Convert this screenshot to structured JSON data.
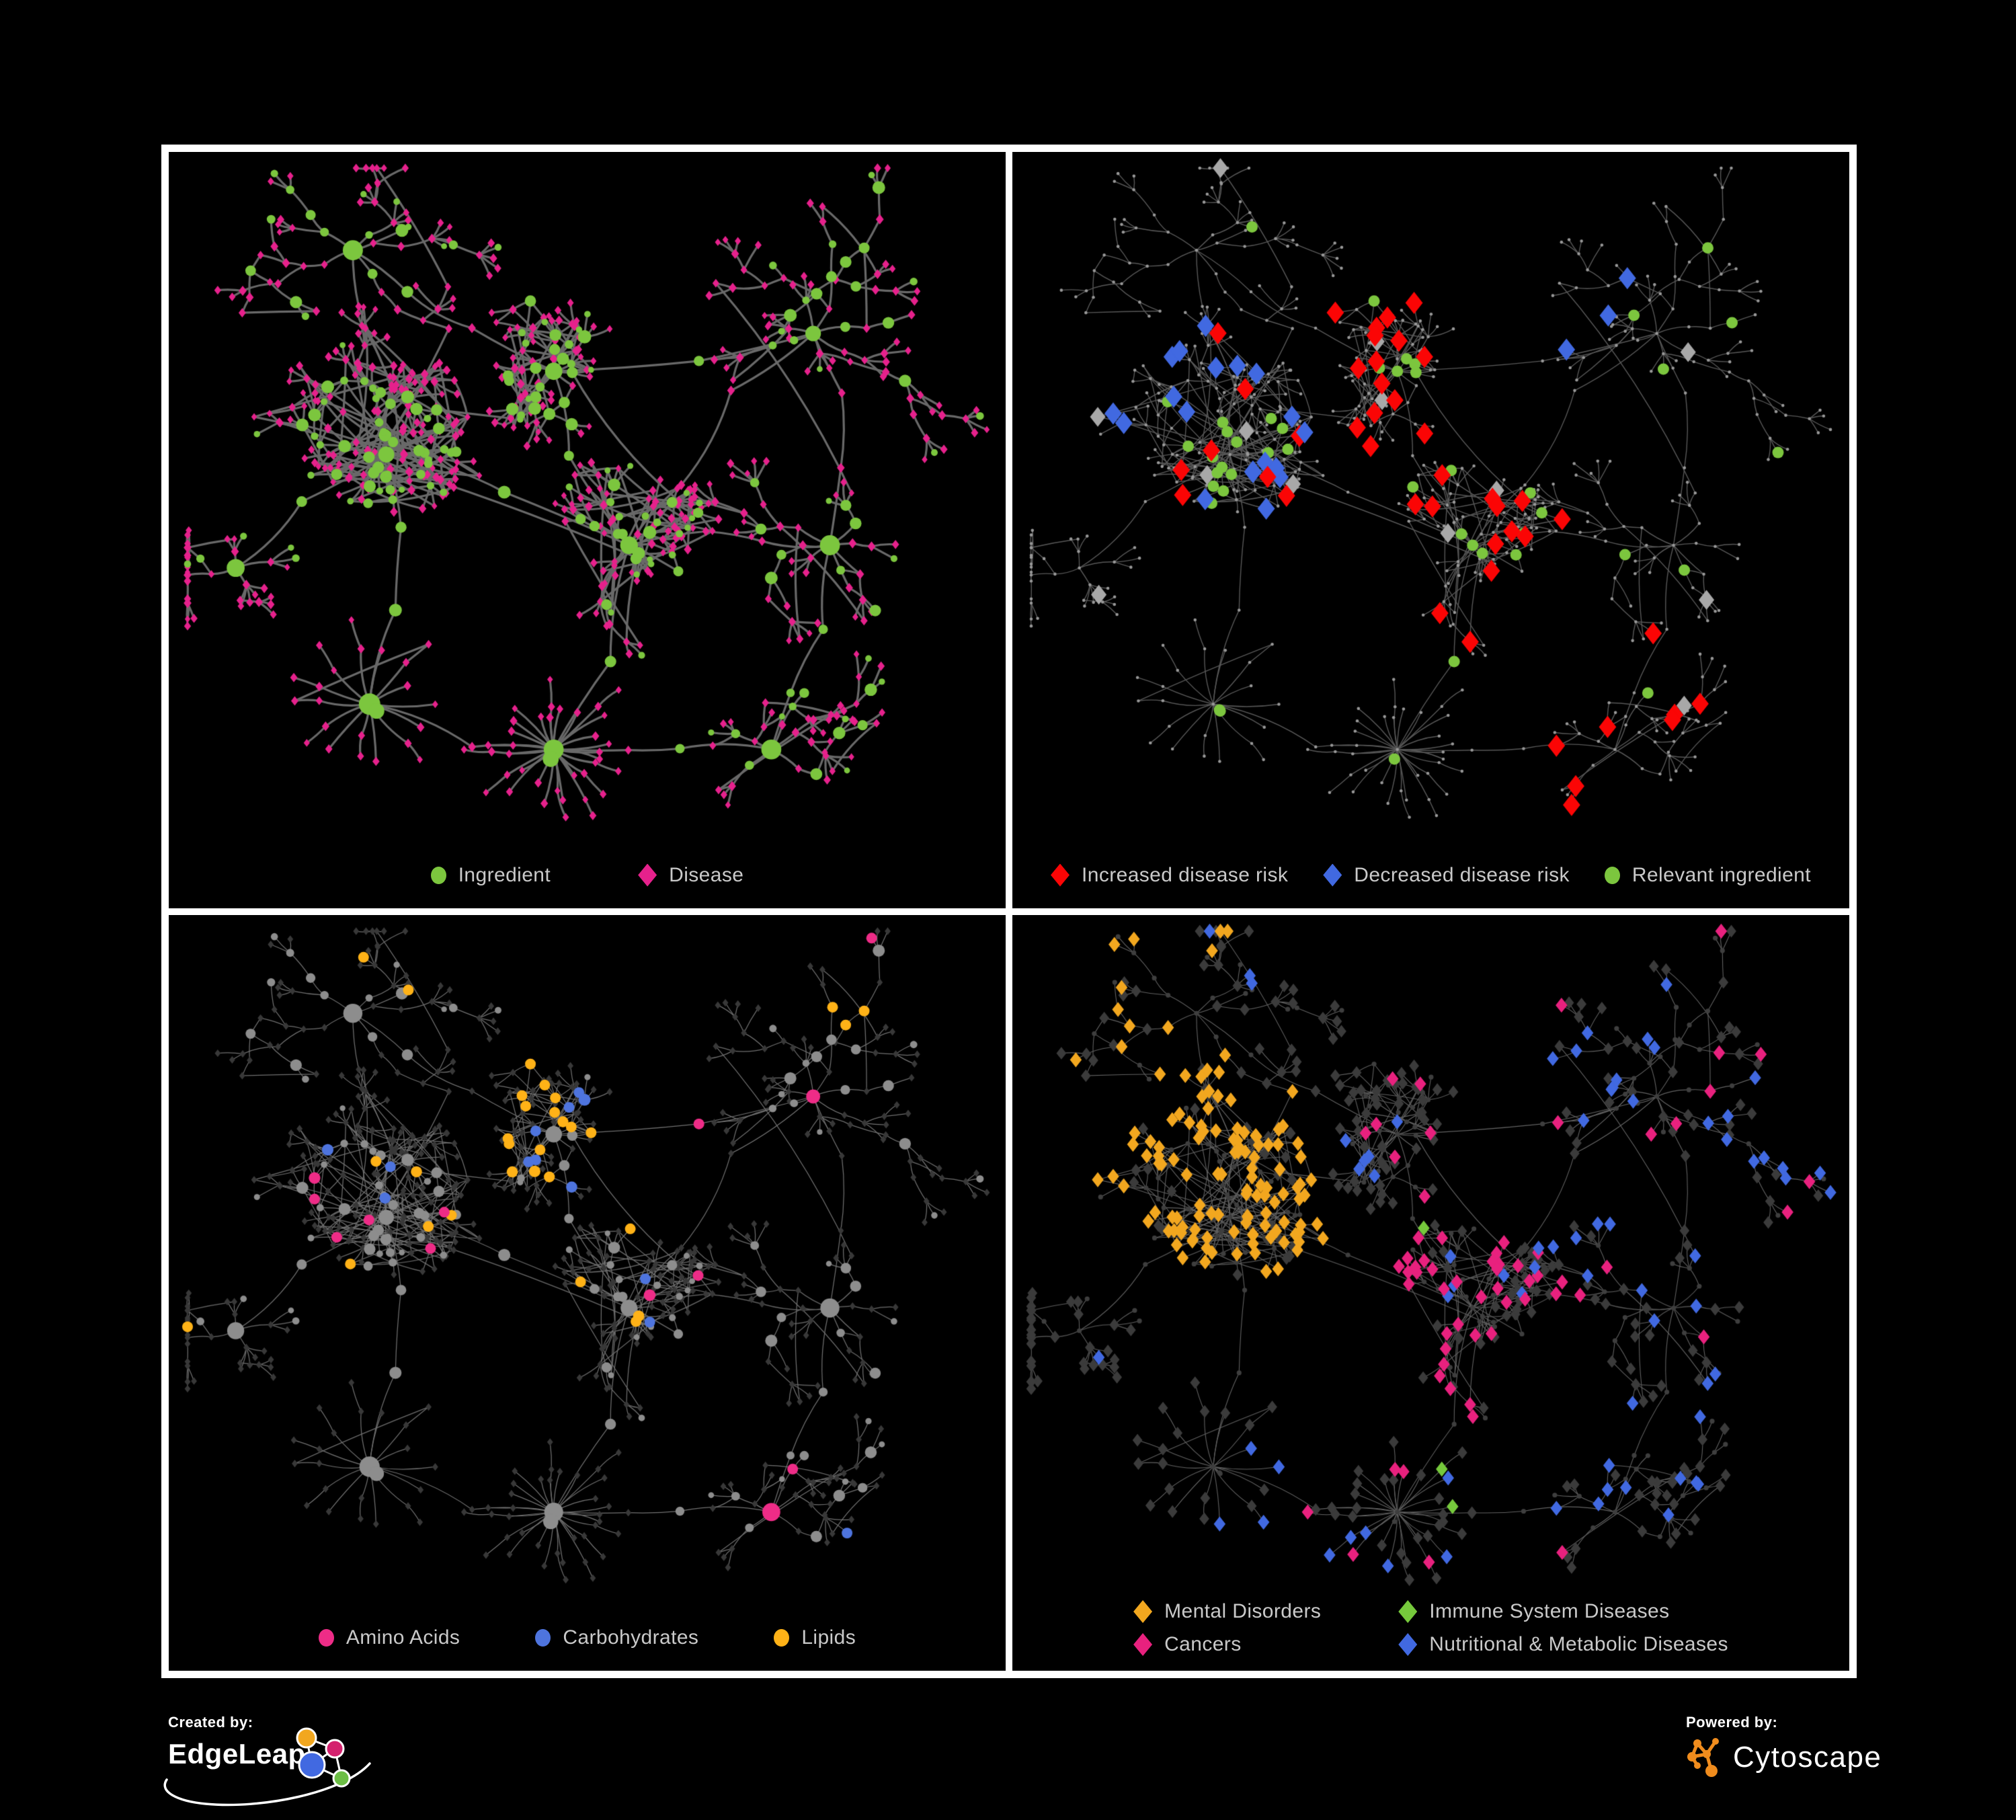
{
  "panels": [
    {
      "id": "ingredient-disease",
      "legend": [
        {
          "label": "Ingredient",
          "shape": "circle",
          "color": "#7CC63E"
        },
        {
          "label": "Disease",
          "shape": "diamond",
          "color": "#E6218C"
        }
      ]
    },
    {
      "id": "disease-risk",
      "legend": [
        {
          "label": "Increased disease risk",
          "shape": "diamond",
          "color": "#FB0505"
        },
        {
          "label": "Decreased disease risk",
          "shape": "diamond",
          "color": "#4169E1"
        },
        {
          "label": "Relevant ingredient",
          "shape": "circle",
          "color": "#7CC63E"
        }
      ]
    },
    {
      "id": "nutrient-classes",
      "legend": [
        {
          "label": "Amino Acids",
          "shape": "circle",
          "color": "#EE2C87"
        },
        {
          "label": "Carbohydrates",
          "shape": "circle",
          "color": "#4E74DE"
        },
        {
          "label": "Lipids",
          "shape": "circle",
          "color": "#FFB217"
        }
      ]
    },
    {
      "id": "disease-categories",
      "legend": [
        {
          "label": "Mental Disorders",
          "shape": "diamond",
          "color": "#F2A71F"
        },
        {
          "label": "Immune System Diseases",
          "shape": "diamond",
          "color": "#76C93C"
        },
        {
          "label": "Cancers",
          "shape": "diamond",
          "color": "#E8217E"
        },
        {
          "label": "Nutritional & Metabolic Diseases",
          "shape": "diamond",
          "color": "#4169E1"
        }
      ]
    }
  ],
  "branding": {
    "created_by": "Created by:",
    "edgeleap": "EdgeLeap",
    "powered_by": "Powered by:",
    "cytoscape": "Cytoscape",
    "edgeleap_colors": [
      "#F2A71F",
      "#D4216E",
      "#4169E1",
      "#6CBE45"
    ],
    "cytoscape_color": "#F08C1D"
  },
  "chart_data": {
    "type": "network",
    "description": "Four views of the same ingredient-disease association network. Circles = ingredients, diamonds = diseases, edges = associations. Each panel recolors the same layout: (1) node type, (2) disease risk direction + relevant ingredients, (3) nutrient class of ingredients, (4) disease category.",
    "layout_seed": 1337,
    "clusters": [
      {
        "x": 0.26,
        "y": 0.4,
        "type": "hairball",
        "branches": 13,
        "depth": 4
      },
      {
        "x": 0.46,
        "y": 0.29,
        "type": "dense",
        "branches": 10,
        "depth": 3
      },
      {
        "x": 0.55,
        "y": 0.52,
        "type": "dense",
        "branches": 9,
        "depth": 3
      },
      {
        "x": 0.46,
        "y": 0.79,
        "type": "burst",
        "leaves": 28
      },
      {
        "x": 0.77,
        "y": 0.24,
        "type": "tree",
        "branches": 7,
        "depth": 5
      },
      {
        "x": 0.79,
        "y": 0.52,
        "type": "tree",
        "branches": 6,
        "depth": 3
      },
      {
        "x": 0.72,
        "y": 0.79,
        "type": "tree",
        "branches": 5,
        "depth": 3
      },
      {
        "x": 0.22,
        "y": 0.13,
        "type": "tree",
        "branches": 5,
        "depth": 4
      },
      {
        "x": 0.24,
        "y": 0.73,
        "type": "burst",
        "leaves": 14
      },
      {
        "x": 0.08,
        "y": 0.55,
        "type": "tree",
        "branches": 4,
        "depth": 3
      }
    ],
    "root_links": [
      [
        0,
        1
      ],
      [
        1,
        2
      ],
      [
        0,
        2
      ],
      [
        2,
        3
      ],
      [
        1,
        4
      ],
      [
        2,
        5
      ],
      [
        4,
        5
      ],
      [
        5,
        6
      ],
      [
        0,
        7
      ],
      [
        0,
        8
      ],
      [
        0,
        9
      ],
      [
        3,
        6
      ],
      [
        2,
        4
      ],
      [
        7,
        1
      ],
      [
        3,
        8
      ]
    ],
    "styles": {
      "p1": {
        "edge": {
          "color": "#696969",
          "width": 3.2
        },
        "ingredient": "#7CC63E",
        "disease": "#E6218C"
      },
      "p2": {
        "edge": {
          "color": "#585858",
          "width": 1.4
        },
        "dot": "#989898",
        "dotR": 2.3,
        "red": "#FB0505",
        "blue": "#4169E1",
        "gray": "#A8A8A8",
        "green": "#7CC63E",
        "diamondR": 14,
        "grayR": 12.5,
        "greenR": 8.5
      },
      "p3": {
        "edge": {
          "color": "#6F6F6F",
          "width": 1.25
        },
        "diamond": "#383838",
        "diamondR": 4.8,
        "circle": "#8D8D8D",
        "pink": "#EE2C87",
        "blue": "#4E74DE",
        "orange": "#FFB217"
      },
      "p4": {
        "edge": {
          "color": "#616161",
          "width": 1.1
        },
        "circle": "#3E3E3E",
        "circleR": 3.6,
        "diamond": "#3B3B3B",
        "diamondR": 8,
        "orange": "#F2A71F",
        "green": "#76C93C",
        "pink": "#E8217E",
        "blue": "#4169E1",
        "hiR": 9.5
      }
    }
  }
}
